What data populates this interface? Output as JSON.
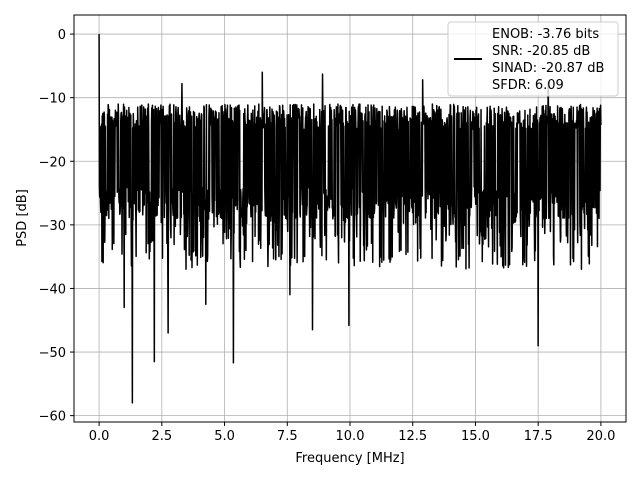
{
  "chart_data": {
    "type": "line",
    "xlabel": "Frequency [MHz]",
    "ylabel": "PSD [dB]",
    "xlim": [
      -1,
      21
    ],
    "ylim": [
      -61,
      3
    ],
    "x_ticks": [
      0.0,
      2.5,
      5.0,
      7.5,
      10.0,
      12.5,
      15.0,
      17.5,
      20.0
    ],
    "x_tick_labels": [
      "0.0",
      "2.5",
      "5.0",
      "7.5",
      "10.0",
      "12.5",
      "15.0",
      "17.5",
      "20.0"
    ],
    "y_ticks": [
      0,
      -10,
      -20,
      -30,
      -40,
      -50,
      -60
    ],
    "y_tick_labels": [
      "0",
      "−10",
      "−20",
      "−30",
      "−40",
      "−50",
      "−60"
    ],
    "grid": true,
    "legend_position": "top-right",
    "legend_lines": [
      "ENOB: -3.76 bits",
      "SNR: -20.85 dB",
      "SINAD: -20.87 dB",
      "SFDR: 6.09"
    ],
    "series_color": "#000000",
    "series": [
      {
        "x_range": [
          0,
          20
        ],
        "points": 1600,
        "baseline_db": -19.5,
        "noise_band_db": [
          -29,
          -11
        ],
        "peak_db": 0.0,
        "peak_x": 0.0,
        "notable_minima": [
          {
            "x": 1.33,
            "y": -58.0
          },
          {
            "x": 2.2,
            "y": -51.5
          },
          {
            "x": 5.35,
            "y": -51.7
          },
          {
            "x": 17.5,
            "y": -49.0
          },
          {
            "x": 9.95,
            "y": -45.8
          },
          {
            "x": 1.0,
            "y": -43.0
          },
          {
            "x": 2.75,
            "y": -47.0
          },
          {
            "x": 8.5,
            "y": -46.5
          },
          {
            "x": 7.6,
            "y": -41.0
          },
          {
            "x": 4.25,
            "y": -42.5
          }
        ],
        "notable_maxima": [
          {
            "x": 6.5,
            "y": -6.0
          },
          {
            "x": 8.9,
            "y": -6.3
          },
          {
            "x": 3.3,
            "y": -7.8
          },
          {
            "x": 12.9,
            "y": -7.2
          },
          {
            "x": 17.9,
            "y": -7.5
          }
        ]
      }
    ]
  }
}
